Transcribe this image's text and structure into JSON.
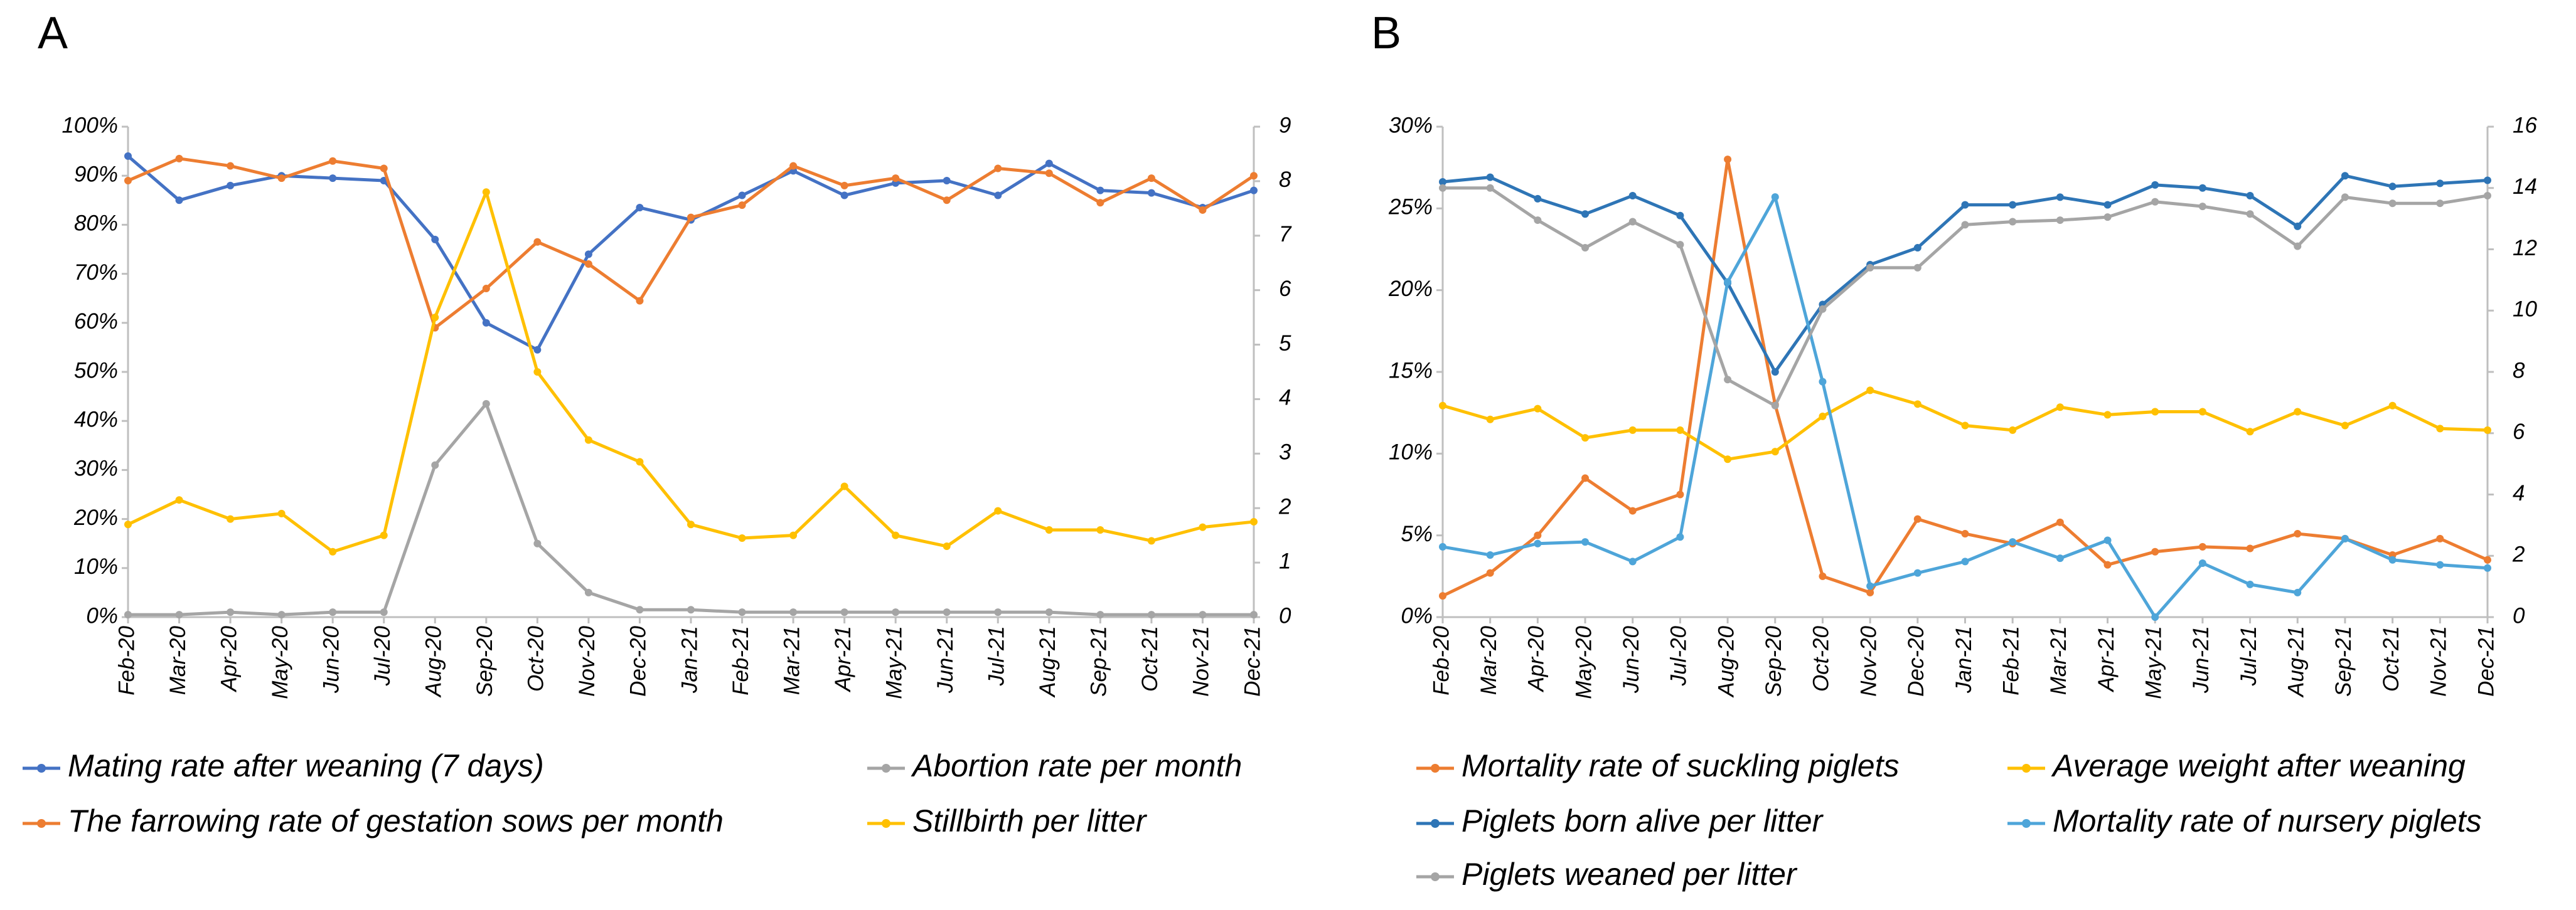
{
  "chart_data": [
    {
      "type": "line",
      "panel_label": "A",
      "categories": [
        "Feb-20",
        "Mar-20",
        "Apr-20",
        "May-20",
        "Jun-20",
        "Jul-20",
        "Aug-20",
        "Sep-20",
        "Oct-20",
        "Nov-20",
        "Dec-20",
        "Jan-21",
        "Feb-21",
        "Mar-21",
        "Apr-21",
        "May-21",
        "Jun-21",
        "Jul-21",
        "Aug-21",
        "Sep-21",
        "Oct-21",
        "Nov-21",
        "Dec-21"
      ],
      "ylim": [
        0,
        100
      ],
      "yticks": [
        {
          "value": 0,
          "label": "0%"
        },
        {
          "value": 10,
          "label": "10%"
        },
        {
          "value": 20,
          "label": "20%"
        },
        {
          "value": 30,
          "label": "30%"
        },
        {
          "value": 40,
          "label": "40%"
        },
        {
          "value": 50,
          "label": "50%"
        },
        {
          "value": 60,
          "label": "60%"
        },
        {
          "value": 70,
          "label": "70%"
        },
        {
          "value": 80,
          "label": "80%"
        },
        {
          "value": 90,
          "label": "90%"
        },
        {
          "value": 100,
          "label": "100%"
        }
      ],
      "y2lim": [
        0,
        9
      ],
      "y2ticks": [
        0,
        1,
        2,
        3,
        4,
        5,
        6,
        7,
        8,
        9
      ],
      "series": [
        {
          "name": "Mating rate after weaning (7 days)",
          "color": "#4472c4",
          "values": [
            94,
            85,
            88,
            90,
            89.5,
            89,
            77,
            60,
            54.5,
            74,
            83.5,
            81,
            86,
            91,
            86,
            88.5,
            89,
            86,
            92.5,
            87,
            86.5,
            83.5,
            87
          ]
        },
        {
          "name": "Abortion rate per month",
          "color": "#a5a5a5",
          "values": [
            0.5,
            0.5,
            1,
            0.5,
            1,
            1,
            31,
            43.5,
            15,
            5,
            1.5,
            1.5,
            1,
            1,
            1,
            1,
            1,
            1,
            1,
            0.5,
            0.5,
            0.5,
            0.5
          ]
        },
        {
          "name": "The farrowing rate of gestation sows per month",
          "color": "#ed7d31",
          "values": [
            89,
            93.5,
            92,
            89.5,
            93,
            91.5,
            59,
            67,
            76.5,
            72,
            64.5,
            81.5,
            84,
            92,
            88,
            89.5,
            85,
            91.5,
            90.5,
            84.5,
            89.5,
            83,
            90
          ]
        },
        {
          "name": "Stillbirth per litter",
          "color": "#ffc000",
          "axis": "y2",
          "values": [
            1.7,
            2.15,
            1.8,
            1.9,
            1.2,
            1.5,
            5.5,
            7.8,
            4.5,
            3.25,
            2.85,
            1.7,
            1.45,
            1.5,
            2.4,
            1.5,
            1.3,
            1.95,
            1.6,
            1.6,
            1.4,
            1.65,
            1.75
          ]
        }
      ]
    },
    {
      "type": "line",
      "panel_label": "B",
      "categories": [
        "Feb-20",
        "Mar-20",
        "Apr-20",
        "May-20",
        "Jun-20",
        "Jul-20",
        "Aug-20",
        "Sep-20",
        "Oct-20",
        "Nov-20",
        "Dec-20",
        "Jan-21",
        "Feb-21",
        "Mar-21",
        "Apr-21",
        "May-21",
        "Jun-21",
        "Jul-21",
        "Aug-21",
        "Sep-21",
        "Oct-21",
        "Nov-21",
        "Dec-21"
      ],
      "ylim": [
        0,
        30
      ],
      "yticks": [
        {
          "value": 0,
          "label": "0%"
        },
        {
          "value": 5,
          "label": "5%"
        },
        {
          "value": 10,
          "label": "10%"
        },
        {
          "value": 15,
          "label": "15%"
        },
        {
          "value": 20,
          "label": "20%"
        },
        {
          "value": 25,
          "label": "25%"
        },
        {
          "value": 30,
          "label": "30%"
        }
      ],
      "y2lim": [
        0,
        16
      ],
      "y2ticks": [
        0,
        2,
        4,
        6,
        8,
        10,
        12,
        14,
        16
      ],
      "series": [
        {
          "name": "Mortality rate of suckling piglets",
          "color": "#ed7d31",
          "values": [
            1.3,
            2.7,
            5,
            8.5,
            6.5,
            7.5,
            28,
            13,
            2.5,
            1.5,
            6,
            5.1,
            4.5,
            5.8,
            3.2,
            4,
            4.3,
            4.2,
            5.1,
            4.8,
            3.8,
            4.8,
            3.5
          ]
        },
        {
          "name": "Average weight after weaning",
          "color": "#ffc000",
          "axis": "y2",
          "values": [
            6.9,
            6.45,
            6.8,
            5.85,
            6.1,
            6.1,
            5.15,
            5.4,
            6.55,
            7.4,
            6.95,
            6.25,
            6.1,
            6.85,
            6.6,
            6.7,
            6.7,
            6.05,
            6.7,
            6.25,
            6.9,
            6.15,
            6.1
          ]
        },
        {
          "name": "Piglets born alive per litter",
          "color": "#2e75b6",
          "axis": "y2",
          "values": [
            14.2,
            14.35,
            13.65,
            13.15,
            13.75,
            13.1,
            10.9,
            8,
            10.2,
            11.5,
            12.05,
            13.45,
            13.45,
            13.7,
            13.45,
            14.1,
            14,
            13.75,
            12.75,
            14.4,
            14.05,
            14.15,
            14.25
          ]
        },
        {
          "name": "Mortality rate of nursery piglets",
          "color": "#4ea5d9",
          "values": [
            4.3,
            3.8,
            4.5,
            4.6,
            3.4,
            4.9,
            20.5,
            25.7,
            14.4,
            1.9,
            2.7,
            3.4,
            4.6,
            3.6,
            4.7,
            0,
            3.3,
            2,
            1.5,
            4.8,
            3.5,
            3.2,
            3
          ]
        },
        {
          "name": "Piglets weaned per litter",
          "color": "#a5a5a5",
          "axis": "y2",
          "values": [
            14,
            14,
            12.95,
            12.05,
            12.9,
            12.15,
            7.75,
            6.9,
            10.05,
            11.4,
            11.4,
            12.8,
            12.9,
            12.95,
            13.05,
            13.55,
            13.4,
            13.15,
            12.1,
            13.7,
            13.5,
            13.5,
            13.75
          ]
        }
      ]
    }
  ]
}
